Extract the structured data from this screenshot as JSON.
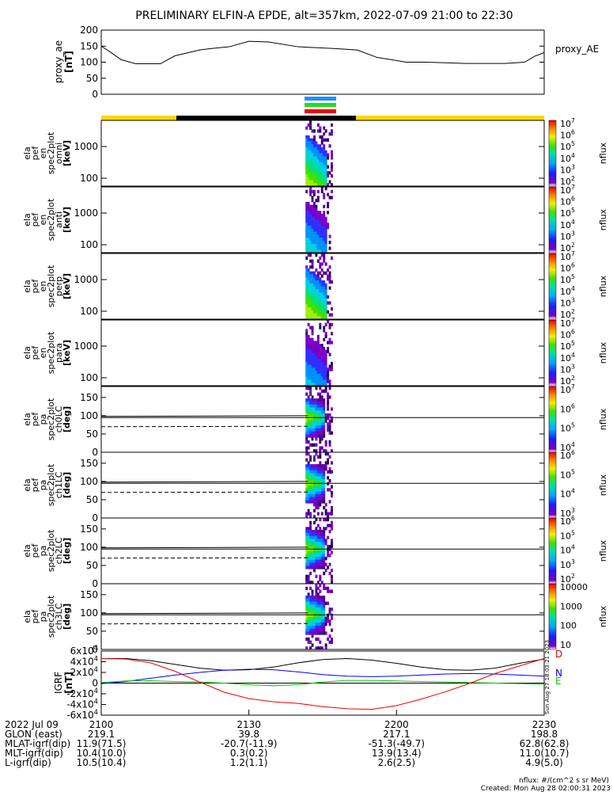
{
  "title": "PRELIMINARY ELFIN-A EPDE, alt=357km, 2022-07-09 21:00 to 22:30",
  "colors": {
    "sci_zone_yellow": "#ffd700",
    "sci_zone_black": "#000000",
    "bar_blue": "#1e90ff",
    "bar_green": "#22dd22",
    "bar_red": "#ee0000"
  },
  "chart_data": [
    {
      "type": "line",
      "panel": "proxy_ae",
      "ylabel": [
        "proxy_ae",
        "[nT]"
      ],
      "legend": "proxy_AE",
      "ylim": [
        0,
        200
      ],
      "yticks": [
        "0",
        "50",
        "100",
        "150",
        "200"
      ],
      "x_minutes": [
        0,
        2,
        4,
        7,
        12,
        15,
        20,
        22,
        26,
        30,
        34,
        40,
        48,
        52,
        56,
        62,
        66,
        70,
        74,
        78,
        82,
        86,
        88,
        90
      ],
      "values": [
        150,
        130,
        108,
        95,
        95,
        120,
        138,
        142,
        148,
        165,
        163,
        148,
        142,
        138,
        115,
        100,
        100,
        98,
        96,
        96,
        96,
        100,
        118,
        130
      ]
    },
    {
      "type": "heatmap",
      "panel": "omni",
      "ylabel": [
        "ela",
        "pef",
        "en",
        "spec2plot",
        "omni",
        "[keV]"
      ],
      "ytype": "log",
      "yticks": [
        "100",
        "1000"
      ],
      "colorbar": {
        "label": "nflux",
        "ticks": [
          "10^2",
          "10^3",
          "10^4",
          "10^5",
          "10^6",
          "10^7"
        ]
      }
    },
    {
      "type": "heatmap",
      "panel": "anti",
      "ylabel": [
        "ela",
        "pef",
        "en",
        "spec2plot",
        "anti",
        "[keV]"
      ],
      "ytype": "log",
      "yticks": [
        "100",
        "1000"
      ],
      "colorbar": {
        "label": "nflux",
        "ticks": [
          "10^2",
          "10^3",
          "10^4",
          "10^5",
          "10^6",
          "10^7"
        ]
      }
    },
    {
      "type": "heatmap",
      "panel": "perp",
      "ylabel": [
        "ela",
        "pef",
        "en",
        "spec2plot",
        "perp",
        "[keV]"
      ],
      "ytype": "log",
      "yticks": [
        "100",
        "1000"
      ],
      "colorbar": {
        "label": "nflux",
        "ticks": [
          "10^2",
          "10^3",
          "10^4",
          "10^5",
          "10^6",
          "10^7"
        ]
      }
    },
    {
      "type": "heatmap",
      "panel": "para",
      "ylabel": [
        "ela",
        "pef",
        "en",
        "spec2plot",
        "para",
        "[keV]"
      ],
      "ytype": "log",
      "yticks": [
        "100",
        "1000"
      ],
      "colorbar": {
        "label": "nflux",
        "ticks": [
          "10^2",
          "10^3",
          "10^4",
          "10^5",
          "10^6",
          "10^7"
        ]
      }
    },
    {
      "type": "heatmap",
      "panel": "ch0LC",
      "ylabel": [
        "ela",
        "pef",
        "pa",
        "spec2plot",
        "ch0LC",
        "[deg]"
      ],
      "ylim": [
        0,
        180
      ],
      "yticks": [
        "0",
        "50",
        "100",
        "150"
      ],
      "colorbar": {
        "label": "nflux",
        "ticks": [
          "10^4",
          "10^5",
          "10^6",
          "10^7"
        ]
      }
    },
    {
      "type": "heatmap",
      "panel": "ch1LC",
      "ylabel": [
        "ela",
        "pef",
        "pa",
        "spec2plot",
        "ch1LC",
        "[deg]"
      ],
      "ylim": [
        0,
        180
      ],
      "yticks": [
        "0",
        "50",
        "100",
        "150"
      ],
      "colorbar": {
        "label": "nflux",
        "ticks": [
          "10^3",
          "10^4",
          "10^5",
          "10^6"
        ]
      }
    },
    {
      "type": "heatmap",
      "panel": "ch2LC",
      "ylabel": [
        "ela",
        "pef",
        "pa",
        "spec2plot",
        "ch2LC",
        "[deg]"
      ],
      "ylim": [
        0,
        180
      ],
      "yticks": [
        "0",
        "50",
        "100",
        "150"
      ],
      "colorbar": {
        "label": "nflux",
        "ticks": [
          "10^2",
          "10^3",
          "10^4",
          "10^5",
          "10^6"
        ]
      }
    },
    {
      "type": "heatmap",
      "panel": "ch3LC",
      "ylabel": [
        "ela",
        "pef",
        "pa",
        "spec2plot",
        "ch3LC",
        "[deg]"
      ],
      "ylim": [
        0,
        180
      ],
      "yticks": [
        "0",
        "50",
        "100",
        "150"
      ],
      "colorbar": {
        "label": "nflux",
        "ticks": [
          "10",
          "100",
          "1000",
          "10000"
        ]
      }
    },
    {
      "type": "line",
      "panel": "IGRF",
      "ylabel": [
        "IGRF",
        "[nT]"
      ],
      "ylim": [
        -60000,
        60000
      ],
      "yticks": [
        "-6x10^4",
        "-4x10^4",
        "-2x10^4",
        "0",
        "2x10^4",
        "4x10^4",
        "6x10^4"
      ],
      "x_minutes": [
        0,
        5,
        10,
        15,
        20,
        25,
        30,
        35,
        40,
        45,
        50,
        55,
        60,
        65,
        70,
        75,
        80,
        85,
        90
      ],
      "series": [
        {
          "name": "D",
          "color": "#000000",
          "values": [
            46000,
            46000,
            42000,
            35000,
            28000,
            24000,
            25000,
            30000,
            38000,
            44000,
            46000,
            43000,
            37000,
            30000,
            25000,
            24000,
            28000,
            37000,
            45000
          ]
        },
        {
          "name": "N",
          "color": "#0000ff",
          "values": [
            -1000,
            3000,
            9000,
            15000,
            20000,
            24000,
            26000,
            25000,
            21000,
            16000,
            13000,
            12000,
            13000,
            15000,
            17000,
            18000,
            17000,
            15000,
            13000
          ]
        },
        {
          "name": "E",
          "color": "#00cc00",
          "values": [
            1000,
            4000,
            4500,
            3000,
            2000,
            0,
            -3000,
            -5000,
            -3000,
            2000,
            5000,
            5000,
            4000,
            3000,
            2000,
            1000,
            0,
            -1000,
            -2000
          ]
        },
        {
          "name": "",
          "color": "#ee0000",
          "values": [
            46000,
            45000,
            38000,
            22000,
            2000,
            -17000,
            -29000,
            -35000,
            -38000,
            -44000,
            -48000,
            -49000,
            -42000,
            -30000,
            -16000,
            0,
            18000,
            32000,
            46000
          ]
        }
      ]
    }
  ],
  "time_axis": {
    "row_labels": [
      "2022 Jul 09",
      "GLON (east)",
      "MLAT-igrf(dip)",
      "MLT-igrf(dip)",
      "L-igrf(dip)"
    ],
    "columns": [
      {
        "x_minutes": 0,
        "time": "2100",
        "glon": "219.1",
        "mlat": "11.9(71.5)",
        "mlt": "10.4(10.0)",
        "l": "10.5(10.4)"
      },
      {
        "x_minutes": 30,
        "time": "2130",
        "glon": "39.8",
        "mlat": "-20.7(-11.9)",
        "mlt": "0.3(0.2)",
        "l": "1.2(1.1)"
      },
      {
        "x_minutes": 60,
        "time": "2200",
        "glon": "217.1",
        "mlat": "-51.3(-49.7)",
        "mlt": "13.9(13.4)",
        "l": "2.6(2.5)"
      },
      {
        "x_minutes": 90,
        "time": "2230",
        "glon": "198.8",
        "mlat": "62.8(62.8)",
        "mlt": "11.0(10.7)",
        "l": "4.9(5.0)"
      }
    ]
  },
  "footer": {
    "units": "nflux: #/(cm^2 s sr MeV)",
    "created": "Created: Mon Aug 28 02:00:31 2023",
    "side_stamp": "Sun Aug 27 18:03:21 2023"
  }
}
